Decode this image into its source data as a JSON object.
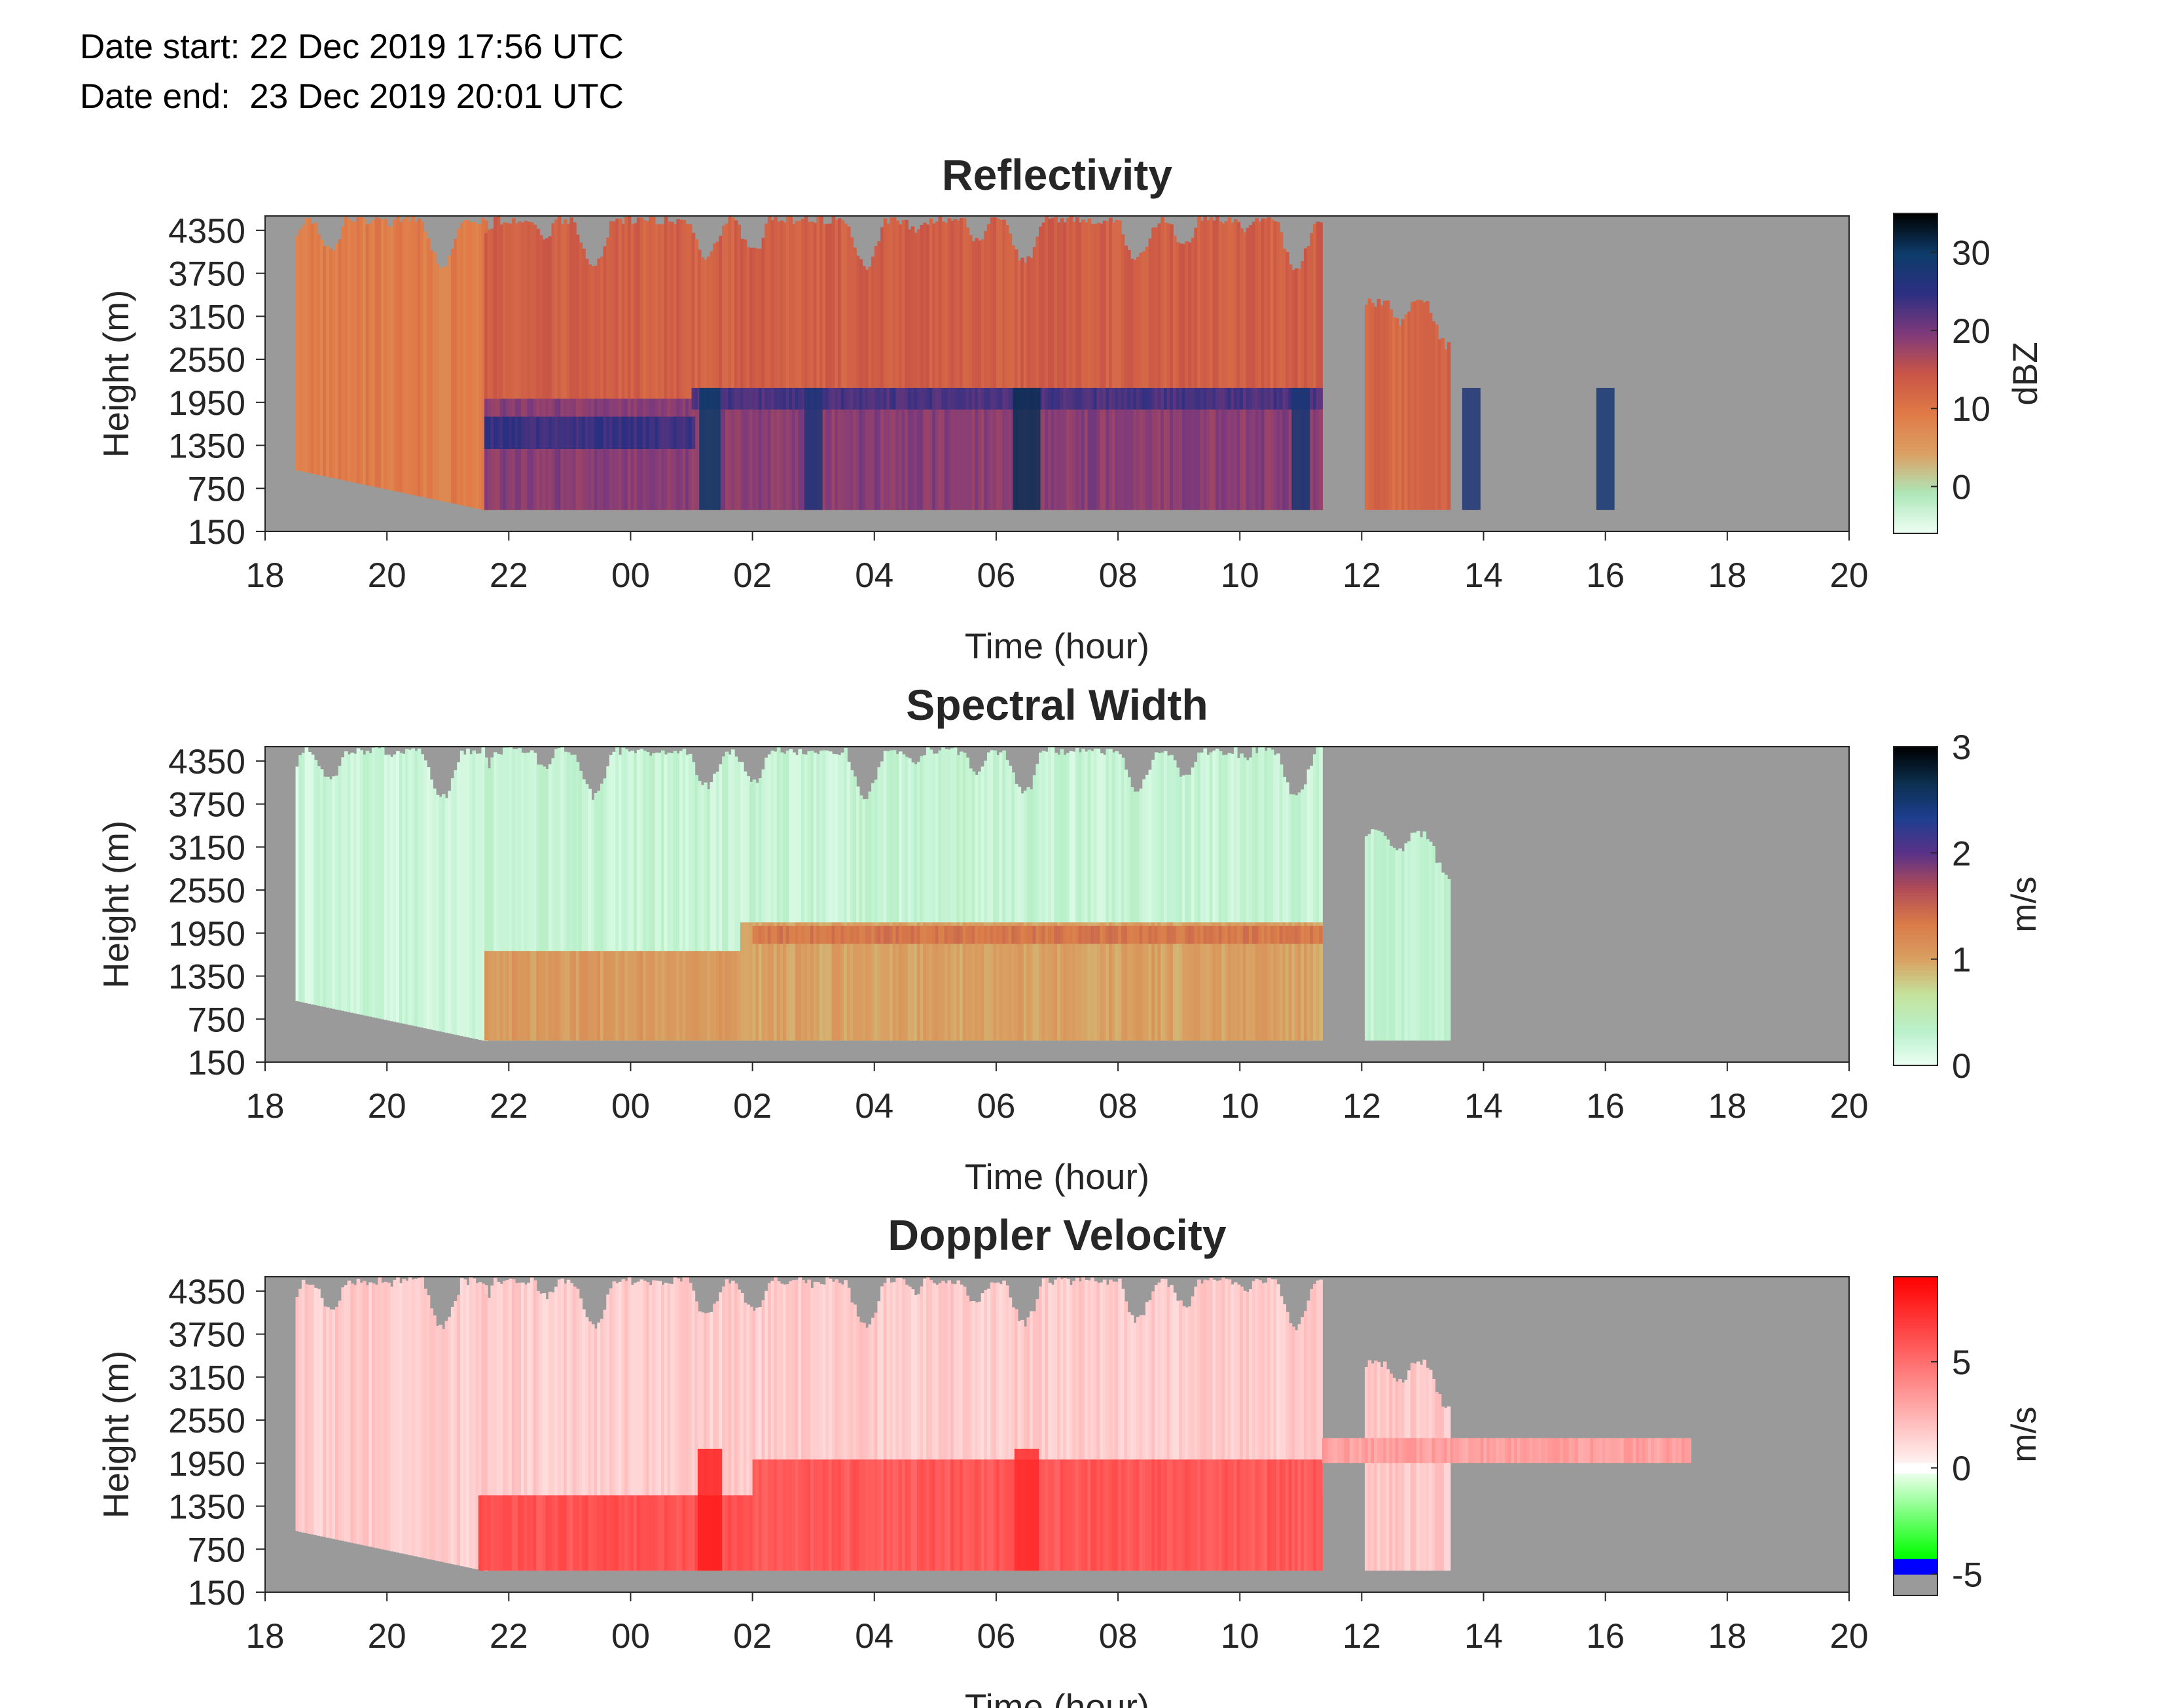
{
  "header": {
    "date_start": "Date start: 22 Dec 2019 17:56 UTC",
    "date_end": "Date end:  23 Dec 2019 20:01 UTC"
  },
  "colors": {
    "no_data": "#9a9a9a",
    "axes_text": "#262626"
  },
  "chart_data": [
    {
      "type": "heatmap",
      "title": "Reflectivity",
      "xlabel": "Time (hour)",
      "ylabel": "Height (m)",
      "x_ticks": [
        "18",
        "20",
        "22",
        "00",
        "02",
        "04",
        "06",
        "08",
        "10",
        "12",
        "14",
        "16",
        "18",
        "20"
      ],
      "y_ticks": [
        "150",
        "750",
        "1350",
        "1950",
        "2550",
        "3150",
        "3750",
        "4350"
      ],
      "xlim_hours_since_18": [
        0,
        26
      ],
      "ylim": [
        150,
        4550
      ],
      "colorbar": {
        "label": "dBZ",
        "range": [
          -6,
          35
        ],
        "ticks": [
          "0",
          "10",
          "20",
          "30"
        ],
        "tick_values": [
          0,
          10,
          20,
          30
        ],
        "colormap": [
          "#effff5",
          "#aee7b9",
          "#dba064",
          "#e07a47",
          "#c95546",
          "#7f3a7b",
          "#2c2f82",
          "#0d3c6a",
          "#000000"
        ]
      },
      "echo_regions": [
        {
          "start": 0.5,
          "end": 3.6,
          "base_m": 1000,
          "top_m": 4550,
          "value": 9
        },
        {
          "start": 3.6,
          "end": 17.35,
          "base_m": 450,
          "top_m": 4550,
          "value": 13
        },
        {
          "start": 18.05,
          "end": 19.45,
          "base_m": 450,
          "top_m": 3400,
          "value": 12
        }
      ],
      "layers": [
        {
          "start": 3.6,
          "end": 17.35,
          "base_m": 450,
          "top_m": 2000,
          "value": 19
        },
        {
          "start": 3.6,
          "end": 7.0,
          "base_m": 1300,
          "top_m": 1750,
          "value": 24
        },
        {
          "start": 7.0,
          "end": 17.35,
          "base_m": 1850,
          "top_m": 2150,
          "value": 23
        }
      ],
      "convective_columns": [
        {
          "center": 7.3,
          "width": 0.35,
          "value": 30
        },
        {
          "center": 9.0,
          "width": 0.3,
          "value": 27
        },
        {
          "center": 12.5,
          "width": 0.45,
          "value": 31
        },
        {
          "center": 17.0,
          "width": 0.3,
          "value": 28
        },
        {
          "center": 19.8,
          "width": 0.3,
          "value": 27
        },
        {
          "center": 22.0,
          "width": 0.3,
          "value": 28
        }
      ]
    },
    {
      "type": "heatmap",
      "title": "Spectral Width",
      "xlabel": "Time (hour)",
      "ylabel": "Height (m)",
      "x_ticks": [
        "18",
        "20",
        "22",
        "00",
        "02",
        "04",
        "06",
        "08",
        "10",
        "12",
        "14",
        "16",
        "18",
        "20"
      ],
      "y_ticks": [
        "150",
        "750",
        "1350",
        "1950",
        "2550",
        "3150",
        "3750",
        "4350"
      ],
      "xlim_hours_since_18": [
        0,
        26
      ],
      "ylim": [
        150,
        4550
      ],
      "colorbar": {
        "label": "m/s",
        "range": [
          0,
          3
        ],
        "ticks": [
          "0",
          "1",
          "2",
          "3"
        ],
        "tick_values": [
          0,
          1,
          2,
          3
        ],
        "colormap": [
          "#ecfff3",
          "#b9f0cb",
          "#c4e39c",
          "#d9a062",
          "#d97b49",
          "#b14c57",
          "#5a3288",
          "#1e3f8f",
          "#0b2f4d",
          "#000000"
        ]
      },
      "echo_regions": [
        {
          "start": 0.5,
          "end": 3.6,
          "base_m": 1000,
          "top_m": 4550,
          "value": 0.2
        },
        {
          "start": 3.6,
          "end": 17.35,
          "base_m": 450,
          "top_m": 4550,
          "value": 0.25
        },
        {
          "start": 18.05,
          "end": 19.45,
          "base_m": 450,
          "top_m": 3400,
          "value": 0.3
        }
      ],
      "layers": [
        {
          "start": 3.6,
          "end": 17.35,
          "base_m": 450,
          "top_m": 1700,
          "value": 1.05
        },
        {
          "start": 7.8,
          "end": 17.35,
          "base_m": 450,
          "top_m": 2100,
          "value": 1.0
        },
        {
          "start": 8.0,
          "end": 17.35,
          "base_m": 1800,
          "top_m": 2050,
          "value": 1.35
        }
      ],
      "convective_columns": []
    },
    {
      "type": "heatmap",
      "title": "Doppler Velocity",
      "xlabel": "Time (hour)",
      "ylabel": "Height (m)",
      "x_ticks": [
        "18",
        "20",
        "22",
        "00",
        "02",
        "04",
        "06",
        "08",
        "10",
        "12",
        "14",
        "16",
        "18",
        "20"
      ],
      "y_ticks": [
        "150",
        "750",
        "1350",
        "1950",
        "2550",
        "3150",
        "3750",
        "4350"
      ],
      "xlim_hours_since_18": [
        0,
        26
      ],
      "ylim": [
        150,
        4550
      ],
      "colorbar": {
        "label": "m/s",
        "range": [
          -6,
          9
        ],
        "ticks": [
          "-5",
          "0",
          "5"
        ],
        "tick_values": [
          -5,
          0,
          5
        ],
        "segments": [
          {
            "from": -6,
            "to": -5,
            "color": "#9a9a9a"
          },
          {
            "from": -5,
            "to": -4.2,
            "color": "#0000ff"
          },
          {
            "from": -4.2,
            "to": -0.2,
            "gradient": [
              "#00ff00",
              "#eeffee"
            ]
          },
          {
            "from": -0.2,
            "to": 0.3,
            "color": "#ffffff"
          },
          {
            "from": 0.3,
            "to": 9,
            "gradient": [
              "#fff0f0",
              "#ff0000"
            ]
          }
        ]
      },
      "echo_regions": [
        {
          "start": 0.5,
          "end": 3.6,
          "base_m": 1000,
          "top_m": 4550,
          "value": 1.6
        },
        {
          "start": 3.6,
          "end": 17.35,
          "base_m": 450,
          "top_m": 4550,
          "value": 1.6
        },
        {
          "start": 18.05,
          "end": 19.45,
          "base_m": 450,
          "top_m": 3400,
          "value": 1.8
        }
      ],
      "layers": [
        {
          "start": 3.5,
          "end": 17.35,
          "base_m": 450,
          "top_m": 1500,
          "value": 6.0
        },
        {
          "start": 8.0,
          "end": 17.35,
          "base_m": 450,
          "top_m": 2000,
          "value": 5.8
        },
        {
          "start": 17.35,
          "end": 23.4,
          "base_m": 1950,
          "top_m": 2300,
          "value": 3.2
        }
      ],
      "convective_columns": [
        {
          "center": 7.3,
          "width": 0.4,
          "value": 8.0
        },
        {
          "center": 12.5,
          "width": 0.4,
          "value": 7.5
        }
      ]
    }
  ]
}
